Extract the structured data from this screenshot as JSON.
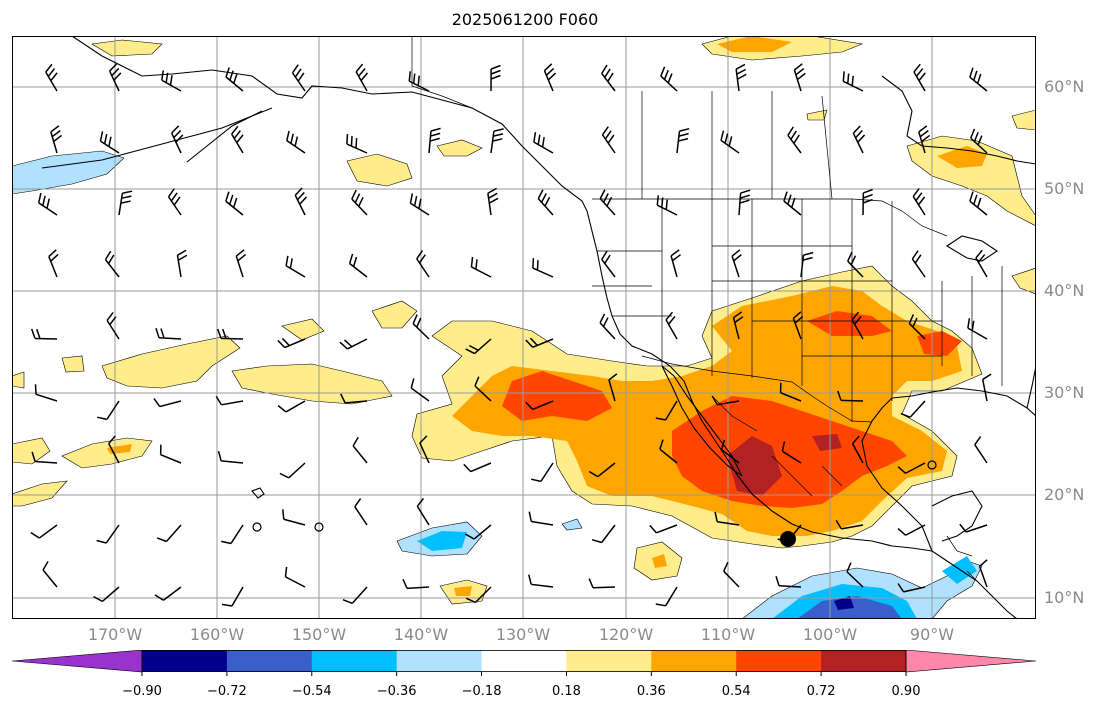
{
  "title": "2025061200 F060",
  "map": {
    "lat_labels": [
      "60°N",
      "50°N",
      "40°N",
      "30°N",
      "20°N",
      "10°N"
    ],
    "lon_labels": [
      "170°W",
      "160°W",
      "150°W",
      "140°W",
      "130°W",
      "120°W",
      "110°W",
      "100°W",
      "90°W"
    ],
    "extent": {
      "lon_min": -180,
      "lon_max": -80,
      "lat_min": 8,
      "lat_max": 65
    },
    "gridlines": true,
    "features": [
      "coastlines",
      "national-borders",
      "state-borders",
      "wind-barbs",
      "filled-contours",
      "storm-marker"
    ]
  },
  "colorbar": {
    "orientation": "horizontal",
    "extend": "both",
    "tick_labels": [
      "−0.90",
      "−0.72",
      "−0.54",
      "−0.36",
      "−0.18",
      "0.18",
      "0.36",
      "0.54",
      "0.72",
      "0.90"
    ],
    "colors": {
      "under": "#9933cc",
      "bins": [
        "#00008b",
        "#3a5fcd",
        "#00bfff",
        "#b0e2ff",
        "#ffffff",
        "#ffec8b",
        "#ffa500",
        "#ff4500",
        "#b22222"
      ],
      "over": "#ff88aa"
    }
  },
  "legend_colors": {
    "positive_light": "#ffec8b",
    "positive_mid": "#ffa500",
    "positive_strong": "#ff4500",
    "positive_max": "#b22222",
    "negative_light": "#b0e2ff",
    "negative_mid": "#00bfff",
    "negative_strong": "#3a5fcd",
    "negative_max": "#00008b"
  }
}
